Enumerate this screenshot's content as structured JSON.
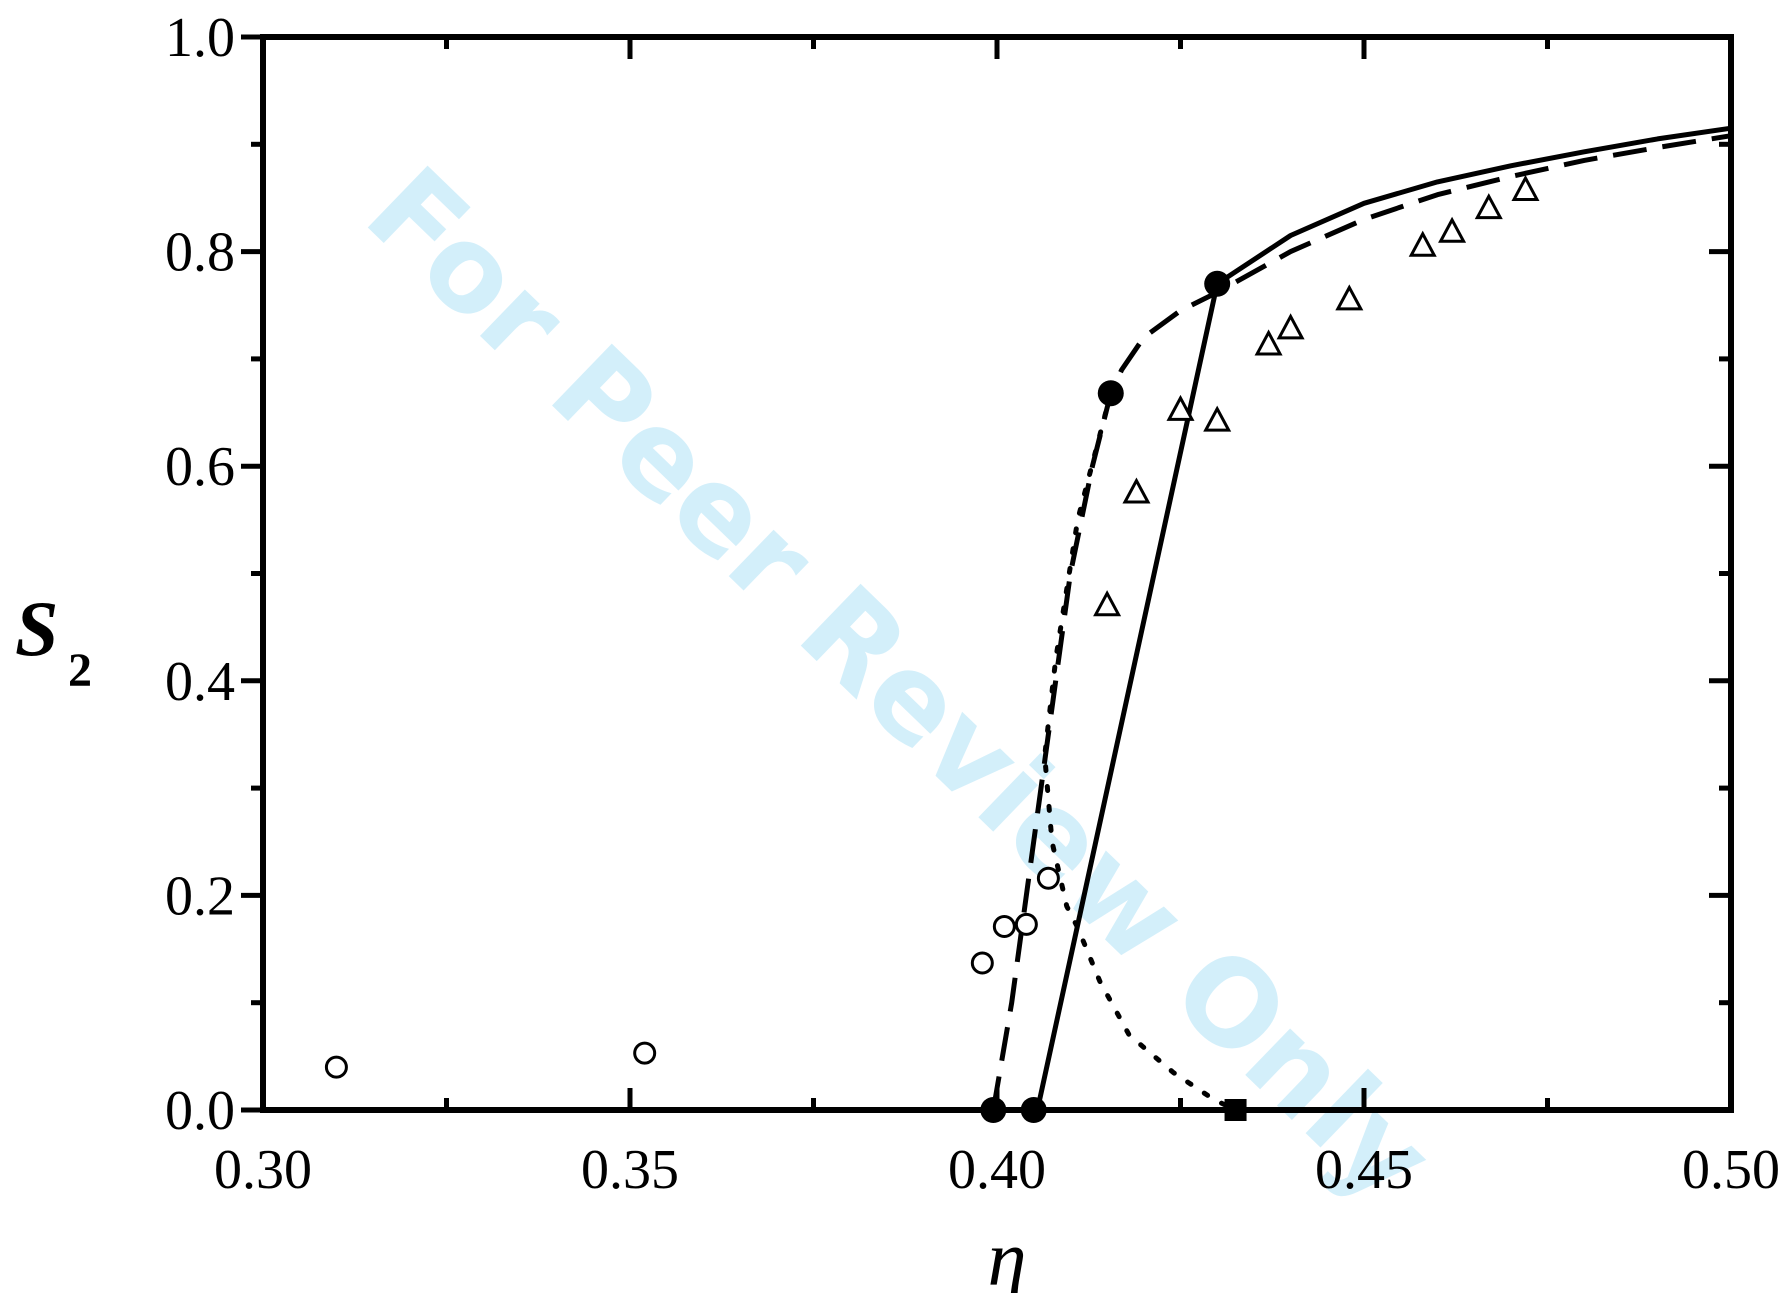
{
  "watermark": "For Peer Review Only",
  "chart_data": {
    "type": "scatter",
    "xlabel": "η",
    "ylabel_main": "S",
    "ylabel_sub": "2",
    "xlim": [
      0.3,
      0.5
    ],
    "ylim": [
      0.0,
      1.0
    ],
    "xticks": [
      0.3,
      0.35,
      0.4,
      0.45,
      0.5
    ],
    "xtick_labels": [
      "0.30",
      "0.35",
      "0.40",
      "0.45",
      "0.50"
    ],
    "yticks": [
      0.0,
      0.2,
      0.4,
      0.6,
      0.8,
      1.0
    ],
    "ytick_labels": [
      "0.0",
      "0.2",
      "0.4",
      "0.6",
      "0.8",
      "1.0"
    ],
    "series": [
      {
        "style": "solid",
        "x": [
          0.405,
          0.4055,
          0.43
        ],
        "y": [
          0.0,
          0.0,
          0.77
        ]
      },
      {
        "style": "solid",
        "x": [
          0.43,
          0.44,
          0.45,
          0.46,
          0.47,
          0.48,
          0.49,
          0.5
        ],
        "y": [
          0.77,
          0.815,
          0.845,
          0.865,
          0.88,
          0.893,
          0.905,
          0.915
        ]
      },
      {
        "style": "dash",
        "x": [
          0.3995,
          0.402,
          0.406,
          0.41,
          0.413,
          0.4155,
          0.417,
          0.42,
          0.425,
          0.43,
          0.44,
          0.45,
          0.46,
          0.47,
          0.48,
          0.49,
          0.5
        ],
        "y": [
          0.0,
          0.1,
          0.3,
          0.5,
          0.6,
          0.668,
          0.69,
          0.72,
          0.745,
          0.762,
          0.8,
          0.83,
          0.853,
          0.87,
          0.885,
          0.897,
          0.908
        ]
      },
      {
        "style": "dot",
        "x": [
          0.4155,
          0.411,
          0.408,
          0.4065,
          0.4075,
          0.4095,
          0.411,
          0.414,
          0.418,
          0.424,
          0.4295,
          0.4325
        ],
        "y": [
          0.668,
          0.55,
          0.42,
          0.33,
          0.25,
          0.19,
          0.17,
          0.12,
          0.07,
          0.035,
          0.01,
          0.0
        ]
      },
      {
        "name": "open circles",
        "marker": "open-circle",
        "x": [
          0.31,
          0.352,
          0.398,
          0.401,
          0.404,
          0.407
        ],
        "y": [
          0.04,
          0.053,
          0.137,
          0.171,
          0.173,
          0.216
        ]
      },
      {
        "name": "open triangles",
        "marker": "open-triangle",
        "x": [
          0.415,
          0.419,
          0.425,
          0.43,
          0.437,
          0.44,
          0.448,
          0.458,
          0.462,
          0.467,
          0.472
        ],
        "y": [
          0.47,
          0.575,
          0.652,
          0.642,
          0.713,
          0.728,
          0.755,
          0.805,
          0.818,
          0.84,
          0.857
        ]
      },
      {
        "name": "filled circles",
        "marker": "filled-circle",
        "x": [
          0.3995,
          0.405,
          0.4155,
          0.43
        ],
        "y": [
          0.0,
          0.0,
          0.668,
          0.77
        ]
      },
      {
        "name": "filled square",
        "marker": "filled-square",
        "x": [
          0.4325
        ],
        "y": [
          0.0
        ]
      }
    ]
  }
}
